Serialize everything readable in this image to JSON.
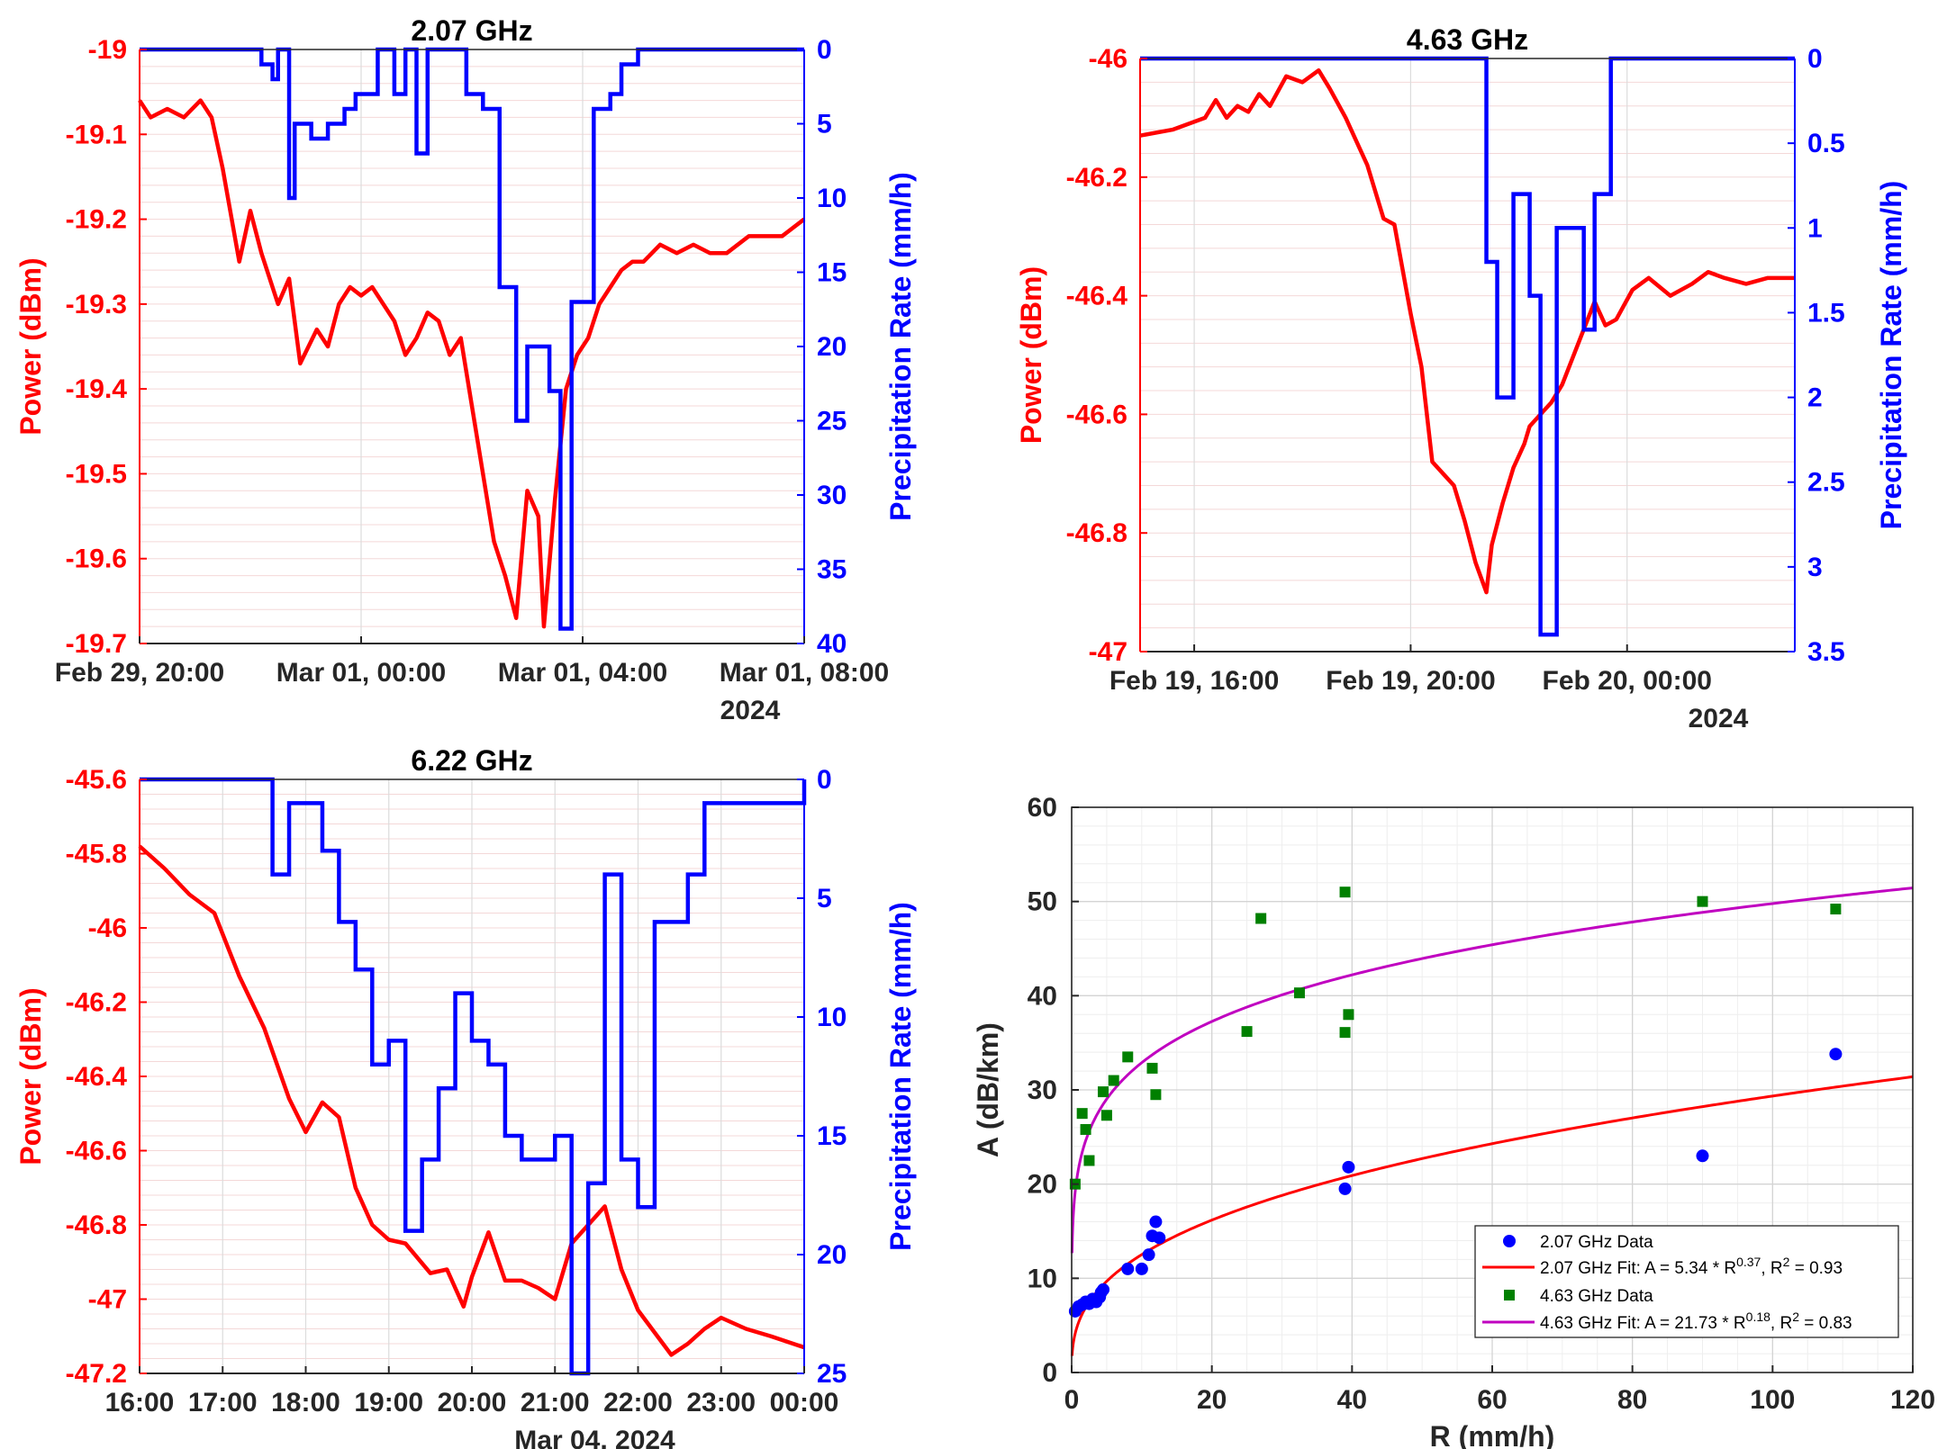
{
  "colors": {
    "power": "#ff0000",
    "precip": "#0000ff",
    "green": "#008000",
    "magenta": "#c000c0"
  },
  "chart_data": [
    {
      "type": "line",
      "title": "2.07 GHz",
      "ylabel": "Power (dBm)",
      "y2label": "Precipitation Rate (mm/h)",
      "xticks": [
        "Feb 29, 20:00",
        "Mar 01, 00:00",
        "Mar 01, 04:00",
        "Mar 01, 08:00"
      ],
      "xyear": "2024",
      "xlim": [
        -4,
        8
      ],
      "ylim": [
        -19.7,
        -19
      ],
      "yticks": [
        "-19",
        "-19.1",
        "-19.2",
        "-19.3",
        "-19.4",
        "-19.5",
        "-19.6",
        "-19.7"
      ],
      "y2lim": [
        0,
        40
      ],
      "y2ticks": [
        "0",
        "5",
        "10",
        "15",
        "20",
        "25",
        "30",
        "35",
        "40"
      ],
      "series": [
        {
          "axis": "left",
          "x": [
            -4,
            -3.8,
            -3.5,
            -3.2,
            -2.9,
            -2.7,
            -2.5,
            -2.2,
            -2,
            -1.8,
            -1.5,
            -1.3,
            -1.1,
            -0.8,
            -0.6,
            -0.4,
            -0.2,
            0,
            0.2,
            0.4,
            0.6,
            0.8,
            1,
            1.2,
            1.4,
            1.6,
            1.8,
            2,
            2.2,
            2.4,
            2.6,
            2.8,
            3,
            3.2,
            3.3,
            3.5,
            3.7,
            3.9,
            4.1,
            4.3,
            4.5,
            4.7,
            4.9,
            5.1,
            5.4,
            5.7,
            6,
            6.3,
            6.6,
            7,
            7.3,
            7.6,
            8
          ],
          "y": [
            -19.06,
            -19.08,
            -19.07,
            -19.08,
            -19.06,
            -19.08,
            -19.14,
            -19.25,
            -19.19,
            -19.24,
            -19.3,
            -19.27,
            -19.37,
            -19.33,
            -19.35,
            -19.3,
            -19.28,
            -19.29,
            -19.28,
            -19.3,
            -19.32,
            -19.36,
            -19.34,
            -19.31,
            -19.32,
            -19.36,
            -19.34,
            -19.42,
            -19.5,
            -19.58,
            -19.62,
            -19.67,
            -19.52,
            -19.55,
            -19.68,
            -19.53,
            -19.4,
            -19.36,
            -19.34,
            -19.3,
            -19.28,
            -19.26,
            -19.25,
            -19.25,
            -19.23,
            -19.24,
            -19.23,
            -19.24,
            -19.24,
            -19.22,
            -19.22,
            -19.22,
            -19.2
          ]
        },
        {
          "axis": "right",
          "step": true,
          "x": [
            -4,
            -1.8,
            -1.6,
            -1.5,
            -1.3,
            -1.2,
            -0.9,
            -0.6,
            -0.3,
            -0.1,
            0.3,
            0.6,
            0.8,
            1,
            1.2,
            1.4,
            1.6,
            1.9,
            2.2,
            2.5,
            2.8,
            3,
            3.4,
            3.6,
            3.8,
            4.2,
            4.5,
            4.7,
            5,
            5.2,
            8
          ],
          "y": [
            0,
            1,
            2,
            0,
            10,
            5,
            6,
            5,
            4,
            3,
            0,
            3,
            0,
            7,
            0,
            0,
            0,
            3,
            4,
            16,
            25,
            20,
            23,
            39,
            17,
            4,
            3,
            1,
            0,
            0,
            0
          ]
        }
      ]
    },
    {
      "type": "line",
      "title": "4.63 GHz",
      "ylabel": "Power (dBm)",
      "y2label": "Precipitation Rate (mm/h)",
      "xticks": [
        "Feb 19, 16:00",
        "Feb 19, 20:00",
        "Feb 20, 00:00"
      ],
      "xyear": "2024",
      "xlim": [
        -2.2,
        9.9
      ],
      "ylim": [
        -47,
        -46
      ],
      "yticks": [
        "-46",
        "-46.2",
        "-46.4",
        "-46.6",
        "-46.8",
        "-47"
      ],
      "y2lim": [
        0,
        3.5
      ],
      "y2ticks": [
        "0",
        "0.5",
        "1",
        "1.5",
        "2",
        "2.5",
        "3",
        "3.5"
      ],
      "series": [
        {
          "axis": "left",
          "x": [
            -2.2,
            -1.6,
            -1.0,
            -0.8,
            -0.6,
            -0.4,
            -0.2,
            0,
            0.2,
            0.5,
            0.8,
            1.1,
            1.3,
            1.6,
            1.8,
            2,
            2.3,
            2.5,
            2.8,
            3,
            3.2,
            3.4,
            3.6,
            3.8,
            4.0,
            4.2,
            4.3,
            4.5,
            4.7,
            4.9,
            5.0,
            5.2,
            5.4,
            5.6,
            5.9,
            6.2,
            6.4,
            6.6,
            6.9,
            7.2,
            7.6,
            8.0,
            8.3,
            8.6,
            9,
            9.4,
            9.9
          ],
          "y": [
            -46.13,
            -46.12,
            -46.1,
            -46.07,
            -46.1,
            -46.08,
            -46.09,
            -46.06,
            -46.08,
            -46.03,
            -46.04,
            -46.02,
            -46.05,
            -46.1,
            -46.14,
            -46.18,
            -46.27,
            -46.28,
            -46.43,
            -46.52,
            -46.68,
            -46.7,
            -46.72,
            -46.78,
            -46.85,
            -46.9,
            -46.82,
            -46.75,
            -46.69,
            -46.65,
            -46.62,
            -46.6,
            -46.58,
            -46.55,
            -46.48,
            -46.41,
            -46.45,
            -46.44,
            -46.39,
            -46.37,
            -46.4,
            -46.38,
            -46.36,
            -46.37,
            -46.38,
            -46.37,
            -46.37
          ]
        },
        {
          "axis": "right",
          "step": true,
          "x": [
            -2.2,
            4.2,
            4.4,
            4.7,
            5,
            5.2,
            5.5,
            5.7,
            6,
            6.2,
            6.5,
            6.7,
            9.9
          ],
          "y": [
            0,
            1.2,
            2,
            0.8,
            1.4,
            3.4,
            1,
            1,
            1.6,
            0.8,
            0,
            0,
            0
          ]
        }
      ]
    },
    {
      "type": "line",
      "title": "6.22 GHz",
      "ylabel": "Power (dBm)",
      "y2label": "Precipitation Rate (mm/h)",
      "xticks": [
        "16:00",
        "17:00",
        "18:00",
        "19:00",
        "20:00",
        "21:00",
        "22:00",
        "23:00",
        "00:00"
      ],
      "xdate": "Mar 04, 2024",
      "xlim": [
        16,
        24
      ],
      "ylim": [
        -47.2,
        -45.6
      ],
      "yticks": [
        "-45.6",
        "-45.8",
        "-46",
        "-46.2",
        "-46.4",
        "-46.6",
        "-46.8",
        "-47",
        "-47.2"
      ],
      "y2lim": [
        0,
        25
      ],
      "y2ticks": [
        "0",
        "5",
        "10",
        "15",
        "20",
        "25"
      ],
      "series": [
        {
          "axis": "left",
          "x": [
            16,
            16.3,
            16.6,
            16.9,
            17.2,
            17.5,
            17.8,
            18,
            18.2,
            18.4,
            18.6,
            18.8,
            19,
            19.2,
            19.5,
            19.7,
            19.9,
            20,
            20.2,
            20.4,
            20.6,
            20.8,
            21,
            21.2,
            21.4,
            21.6,
            21.8,
            22,
            22.2,
            22.4,
            22.6,
            22.8,
            23,
            23.3,
            23.6,
            24
          ],
          "y": [
            -45.78,
            -45.84,
            -45.91,
            -45.96,
            -46.13,
            -46.27,
            -46.46,
            -46.55,
            -46.47,
            -46.51,
            -46.7,
            -46.8,
            -46.84,
            -46.85,
            -46.93,
            -46.92,
            -47.02,
            -46.94,
            -46.82,
            -46.95,
            -46.95,
            -46.97,
            -47.0,
            -46.85,
            -46.8,
            -46.75,
            -46.92,
            -47.03,
            -47.09,
            -47.15,
            -47.12,
            -47.08,
            -47.05,
            -47.08,
            -47.1,
            -47.13
          ]
        },
        {
          "axis": "right",
          "step": true,
          "x": [
            16,
            17.6,
            17.8,
            18,
            18.2,
            18.4,
            18.6,
            18.8,
            19,
            19.2,
            19.4,
            19.6,
            19.8,
            20,
            20.2,
            20.4,
            20.6,
            20.8,
            21,
            21.2,
            21.4,
            21.6,
            21.8,
            22,
            22.2,
            22.4,
            22.6,
            22.8,
            24
          ],
          "y": [
            0,
            4,
            1,
            1,
            3,
            6,
            8,
            12,
            11,
            19,
            16,
            13,
            9,
            11,
            12,
            15,
            16,
            16,
            15,
            25,
            17,
            4,
            16,
            18,
            6,
            6,
            4,
            1,
            0
          ]
        }
      ]
    },
    {
      "type": "scatter",
      "xlabel": "R (mm/h)",
      "ylabel": "A (dB/km)",
      "xlim": [
        0,
        120
      ],
      "ylim": [
        0,
        60
      ],
      "xticks": [
        "0",
        "20",
        "40",
        "60",
        "80",
        "100",
        "120"
      ],
      "yticks": [
        "0",
        "10",
        "20",
        "30",
        "40",
        "50",
        "60"
      ],
      "grid": true,
      "legend_position": "bottom-right",
      "series": [
        {
          "name": "2.07 GHz Data",
          "marker": "circle",
          "x": [
            0.5,
            1,
            1.5,
            2,
            2.5,
            3,
            3.5,
            4,
            4.2,
            4.5,
            8,
            10,
            11,
            11.5,
            12,
            12.5,
            39,
            39.5,
            90,
            109
          ],
          "y": [
            6.5,
            7,
            7.2,
            7.5,
            7.3,
            7.8,
            7.5,
            8,
            8.5,
            8.8,
            11,
            11,
            12.5,
            14.5,
            16,
            14.3,
            19.5,
            21.8,
            23,
            33.8
          ]
        },
        {
          "name": "4.63 GHz Data",
          "marker": "square",
          "x": [
            0.5,
            1.5,
            2,
            2.5,
            4.5,
            5,
            6,
            8,
            11.5,
            12,
            25,
            27,
            32.5,
            39,
            39,
            39.5
          ],
          "y": [
            20,
            27.5,
            25.8,
            22.5,
            29.8,
            27.3,
            31,
            33.5,
            32.3,
            29.5,
            36.2,
            48.2,
            40.3,
            51,
            36.1,
            38
          ],
          "extra_x": [
            90,
            109
          ],
          "extra_y": [
            50,
            49.2
          ]
        },
        {
          "name_prefix": "2.07 GHz Fit: A = 5.34 * R",
          "exponent": "0.37",
          "r2": ", R",
          "r2_exp": "2",
          "r2_val": " = 0.93",
          "a": 5.34,
          "b": 0.37,
          "type": "fit"
        },
        {
          "name_prefix": "4.63 GHz Fit: A = 21.73 * R",
          "exponent": "0.18",
          "r2": ", R",
          "r2_exp": "2",
          "r2_val": " = 0.83",
          "a": 21.73,
          "b": 0.18,
          "type": "fit"
        }
      ]
    }
  ]
}
